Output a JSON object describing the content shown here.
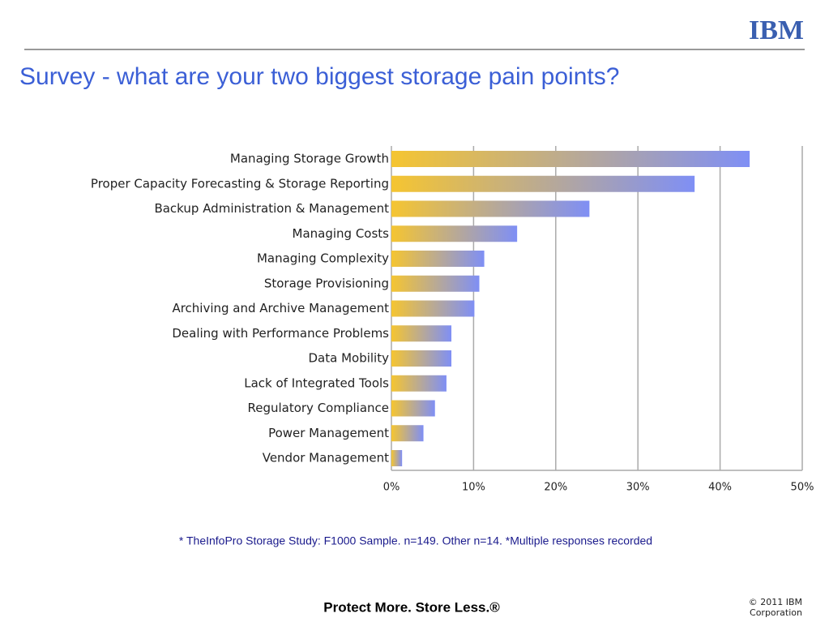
{
  "logo": "IBM",
  "chart_data": {
    "type": "hbar",
    "title": "Survey - what are your two biggest storage pain points?",
    "categories": [
      "Managing Storage Growth",
      "Proper Capacity Forecasting & Storage Reporting",
      "Backup Administration & Management",
      "Managing Costs",
      "Managing Complexity",
      "Storage Provisioning",
      "Archiving and Archive Management",
      "Dealing with Performance Problems",
      "Data Mobility",
      "Lack of Integrated Tools",
      "Regulatory Compliance",
      "Power Management",
      "Vendor Management"
    ],
    "values": [
      43.6,
      36.9,
      24.1,
      15.3,
      11.3,
      10.7,
      10.1,
      7.3,
      7.3,
      6.7,
      5.3,
      3.9,
      1.3
    ],
    "colors": [
      "#f5c531",
      "#7f8ff5"
    ],
    "xlim": [
      0,
      50
    ],
    "xticks": [
      {
        "value": 0,
        "label": "0%"
      },
      {
        "value": 10,
        "label": "10%"
      },
      {
        "value": 20,
        "label": "20%"
      },
      {
        "value": 30,
        "label": "30%"
      },
      {
        "value": 40,
        "label": "40%"
      },
      {
        "value": 50,
        "label": "50%"
      }
    ],
    "grid": true,
    "footnote": "* TheInfoPro Storage Study: F1000 Sample. n=149. Other n=14. *Multiple responses recorded"
  },
  "footer": {
    "tagline": "Protect More. Store Less.®",
    "copyright": [
      "© 2011 IBM",
      "Corporation"
    ]
  }
}
